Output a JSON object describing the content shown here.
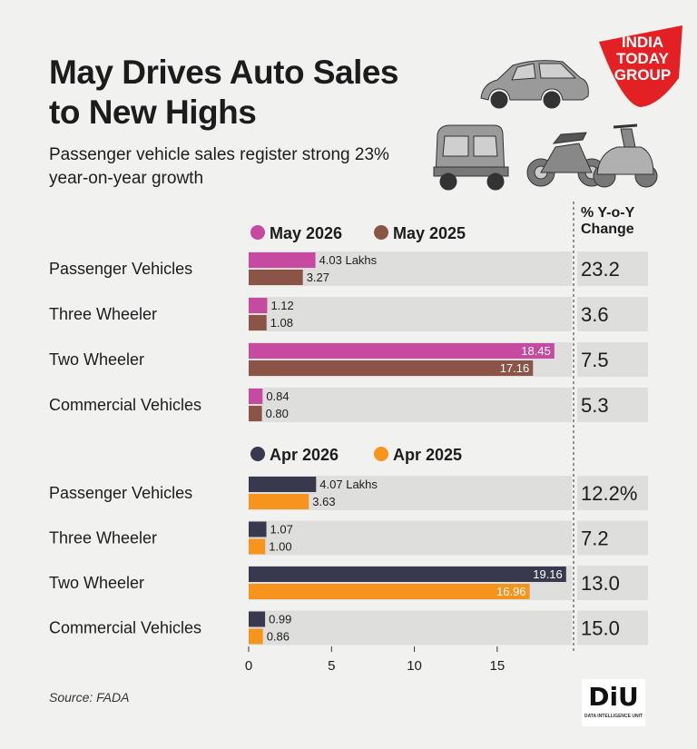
{
  "title": "May Drives Auto Sales to New Highs",
  "subtitle": "Passenger vehicle sales register strong 23% year-on-year growth",
  "logo": {
    "line1": "INDIA",
    "line2": "TODAY",
    "line3": "GROUP",
    "color": "#e32124"
  },
  "yoy_header": "% Y-o-Y Change",
  "source": "Source: FADA",
  "diu_logo": {
    "text": "DiU",
    "subtext": "DATA INTELLIGENCE UNIT"
  },
  "colors": {
    "may2026": "#c54aa0",
    "may2025": "#8b5446",
    "apr2026": "#38394f",
    "apr2025": "#f7941d",
    "row_bg": "#dededd"
  },
  "chart_data": {
    "type": "bar",
    "orientation": "horizontal",
    "xlim": [
      0,
      19.5
    ],
    "xticks": [
      0,
      5,
      10,
      15
    ],
    "x_tick_labels": [
      "0",
      "5",
      "10",
      "15"
    ],
    "panels": [
      {
        "legend": [
          "May 2026",
          "May 2025"
        ],
        "categories": [
          "Passenger Vehicles",
          "Three Wheeler",
          "Two Wheeler",
          "Commercial Vehicles"
        ],
        "series": [
          {
            "name": "May 2026",
            "values": [
              4.03,
              1.12,
              18.45,
              0.84
            ],
            "labels": [
              "4.03 Lakhs",
              "1.12",
              "18.45",
              "0.84"
            ]
          },
          {
            "name": "May 2025",
            "values": [
              3.27,
              1.08,
              17.16,
              0.8
            ],
            "labels": [
              "3.27",
              "1.08",
              "17.16",
              "0.80"
            ]
          }
        ],
        "yoy_change": [
          "23.2",
          "3.6",
          "7.5",
          "5.3"
        ]
      },
      {
        "legend": [
          "Apr 2026",
          "Apr 2025"
        ],
        "categories": [
          "Passenger Vehicles",
          "Three Wheeler",
          "Two Wheeler",
          "Commercial Vehicles"
        ],
        "series": [
          {
            "name": "Apr 2026",
            "values": [
              4.07,
              1.07,
              19.16,
              0.99
            ],
            "labels": [
              "4.07 Lakhs",
              "1.07",
              "19.16",
              "0.99"
            ]
          },
          {
            "name": "Apr 2025",
            "values": [
              3.63,
              1.0,
              16.96,
              0.86
            ],
            "labels": [
              "3.63",
              "1.00",
              "16.96",
              "0.86"
            ]
          }
        ],
        "yoy_change": [
          "12.2%",
          "7.2",
          "13.0",
          "15.0"
        ]
      }
    ]
  }
}
